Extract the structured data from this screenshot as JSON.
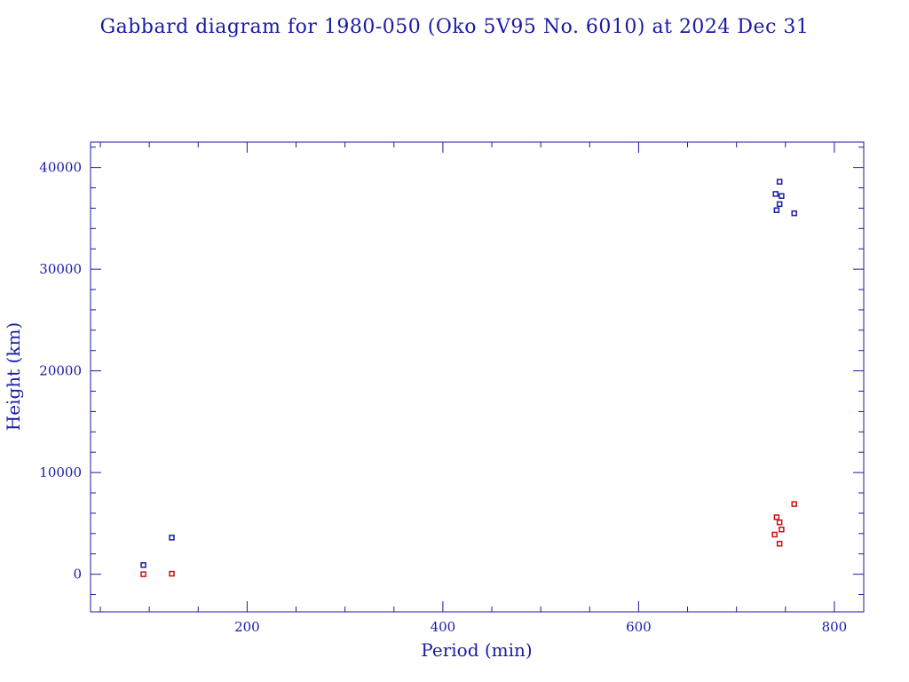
{
  "chart_data": {
    "type": "scatter",
    "title": "Gabbard diagram for 1980-050 (Oko 5V95 No. 6010) at 2024 Dec 31",
    "xlabel": "Period (min)",
    "ylabel": "Height (km)",
    "xlim": [
      40,
      830
    ],
    "ylim": [
      -3700,
      42500
    ],
    "x_ticks_major": [
      200,
      400,
      600,
      800
    ],
    "x_ticks_minor_step": 50,
    "y_ticks_major": [
      0,
      10000,
      20000,
      30000,
      40000
    ],
    "y_ticks_minor_step": 2000,
    "grid": false,
    "legend": "none",
    "series": [
      {
        "color": "#1a1aa6",
        "points": [
          {
            "x": 94,
            "y": 900
          },
          {
            "x": 123,
            "y": 3600
          },
          {
            "x": 744,
            "y": 38600
          },
          {
            "x": 740,
            "y": 37400
          },
          {
            "x": 746,
            "y": 37200
          },
          {
            "x": 744,
            "y": 36400
          },
          {
            "x": 741,
            "y": 35800
          },
          {
            "x": 759,
            "y": 35500
          }
        ]
      },
      {
        "color": "#cc1111",
        "points": [
          {
            "x": 94,
            "y": 0
          },
          {
            "x": 123,
            "y": 50
          },
          {
            "x": 759,
            "y": 6900
          },
          {
            "x": 741,
            "y": 5600
          },
          {
            "x": 744,
            "y": 5100
          },
          {
            "x": 746,
            "y": 4400
          },
          {
            "x": 739,
            "y": 3900
          },
          {
            "x": 744,
            "y": 3000
          }
        ]
      }
    ]
  }
}
